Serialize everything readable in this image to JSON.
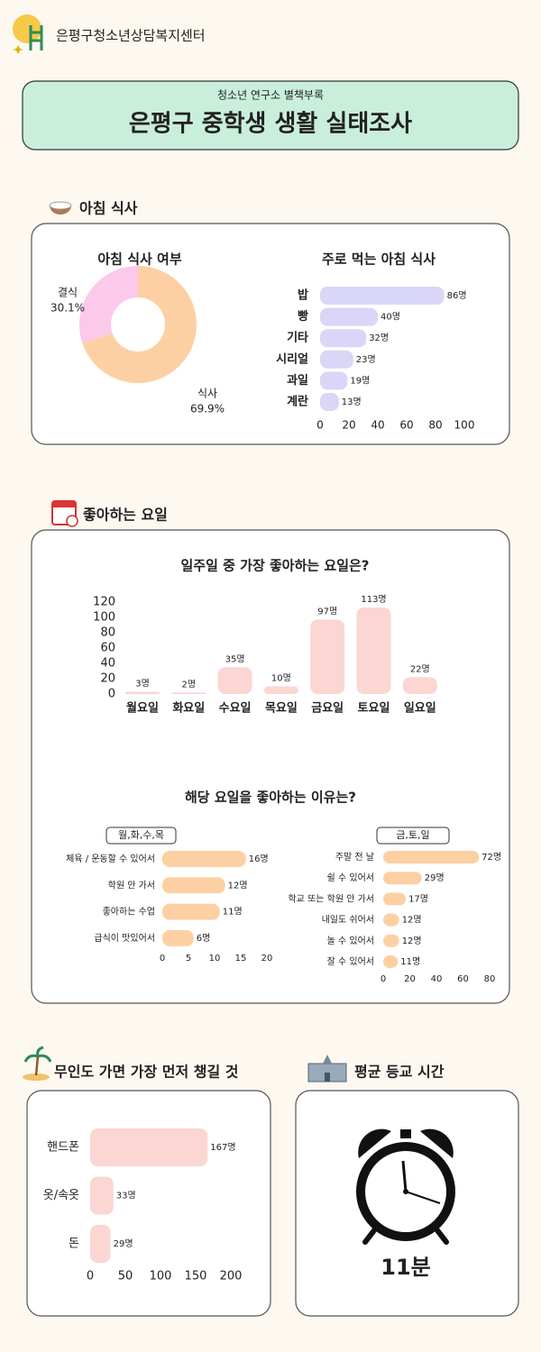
{
  "header": {
    "org": "은평구청소년상담복지센터"
  },
  "banner": {
    "subtitle": "청소년 연구소 별책부록",
    "title": "은평구 중학생 생활 실태조사"
  },
  "sections": {
    "breakfast": "아침 식사",
    "weekday": "좋아하는 요일",
    "reason": "해당 요일을 좋아하는 이유는?",
    "island": "무인도 가면 가장 먼저 챙길 것",
    "commute": "평균 등교 시간"
  },
  "commute_time": "11분",
  "chart_data": [
    {
      "type": "pie",
      "title": "아침 식사 여부",
      "categories": [
        "결식",
        "식사"
      ],
      "values": [
        30.1,
        69.9
      ],
      "value_labels": [
        "30.1%",
        "69.9%"
      ],
      "colors": [
        "#fbc9ea",
        "#fdd0a3"
      ]
    },
    {
      "type": "hbar",
      "title": "주로 먹는 아침 식사",
      "categories": [
        "밥",
        "빵",
        "기타",
        "시리얼",
        "과일",
        "계란"
      ],
      "values": [
        86,
        40,
        32,
        23,
        19,
        13
      ],
      "value_labels": [
        "86명",
        "40명",
        "32명",
        "23명",
        "19명",
        "13명"
      ],
      "color": "#d9d6f7",
      "xlim": [
        0,
        100
      ],
      "xticks": [
        0,
        20,
        40,
        60,
        80,
        100
      ]
    },
    {
      "type": "bar",
      "title": "일주일 중 가장 좋아하는 요일은?",
      "categories": [
        "월요일",
        "화요일",
        "수요일",
        "목요일",
        "금요일",
        "토요일",
        "일요일"
      ],
      "values": [
        3,
        2,
        35,
        10,
        97,
        113,
        22
      ],
      "value_labels": [
        "3명",
        "2명",
        "35명",
        "10명",
        "97명",
        "113명",
        "22명"
      ],
      "color": "#fbd6d2",
      "ylim": [
        0,
        120
      ],
      "yticks": [
        0,
        20,
        40,
        60,
        80,
        100,
        120
      ]
    },
    {
      "type": "hbar",
      "title": "월,화,수,목",
      "categories": [
        "체육 / 운동할 수 있어서",
        "학원 안 가서",
        "좋아하는 수업",
        "급식이 맛있어서"
      ],
      "values": [
        16,
        12,
        11,
        6
      ],
      "value_labels": [
        "16명",
        "12명",
        "11명",
        "6명"
      ],
      "color": "#fdd0a3",
      "xlim": [
        0,
        20
      ],
      "xticks": [
        0,
        5,
        10,
        15,
        20
      ]
    },
    {
      "type": "hbar",
      "title": "금,토,일",
      "categories": [
        "주말 전 날",
        "쉴 수 있어서",
        "학교 또는 학원 안 가서",
        "내일도 쉬어서",
        "놀 수 있어서",
        "잘 수 있어서"
      ],
      "values": [
        72,
        29,
        17,
        12,
        12,
        11
      ],
      "value_labels": [
        "72명",
        "29명",
        "17명",
        "12명",
        "12명",
        "11명"
      ],
      "color": "#fdd0a3",
      "xlim": [
        0,
        80
      ],
      "xticks": [
        0,
        20,
        40,
        60,
        80
      ]
    },
    {
      "type": "hbar",
      "categories": [
        "핸드폰",
        "옷/속옷",
        "돈"
      ],
      "values": [
        167,
        33,
        29
      ],
      "value_labels": [
        "167명",
        "33명",
        "29명"
      ],
      "color": "#fbd6d2",
      "xlim": [
        0,
        200
      ],
      "xticks": [
        0,
        50,
        100,
        150,
        200
      ]
    }
  ]
}
